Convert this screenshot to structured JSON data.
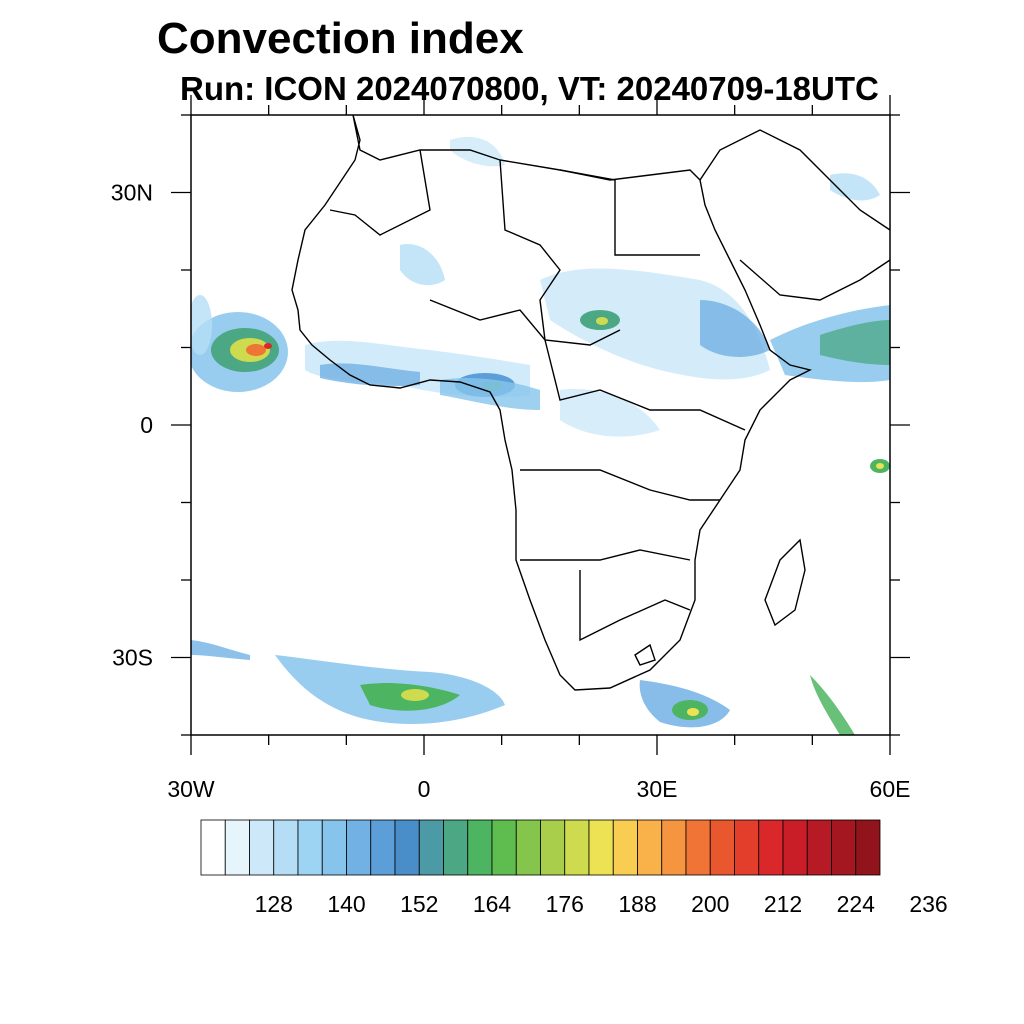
{
  "header": {
    "title": "Convection index",
    "subtitle": "Run: ICON 2024070800,  VT: 20240709-18UTC"
  },
  "map": {
    "extent": {
      "lon": [
        -30,
        60
      ],
      "lat": [
        -40,
        40
      ]
    },
    "lon_ticks": [
      {
        "value": -30,
        "label": "30W"
      },
      {
        "value": 0,
        "label": "0"
      },
      {
        "value": 30,
        "label": "30E"
      },
      {
        "value": 60,
        "label": "60E"
      }
    ],
    "lat_ticks": [
      {
        "value": 30,
        "label": "30N"
      },
      {
        "value": 0,
        "label": "0"
      },
      {
        "value": -30,
        "label": "30S"
      }
    ],
    "colors": {
      "land_line": "#000000",
      "frame": "#000000"
    }
  },
  "colorbar": {
    "levels": [
      128,
      140,
      152,
      164,
      176,
      188,
      200,
      212,
      224,
      236
    ],
    "colors": [
      "#ffffff",
      "#e6f4fc",
      "#cde9f9",
      "#b5def6",
      "#9dd3f3",
      "#86c4ec",
      "#72b1e4",
      "#5b9ed8",
      "#4a8ec9",
      "#4b9aa6",
      "#4ca784",
      "#4db561",
      "#5fbd4f",
      "#85c54b",
      "#a9ce4b",
      "#cedb4e",
      "#ede253",
      "#f9cd51",
      "#f9b24a",
      "#f59540",
      "#ef7436",
      "#e9572e",
      "#e33d2b",
      "#d9272a",
      "#c91d28",
      "#b61a24",
      "#a41720",
      "#91141c"
    ]
  }
}
